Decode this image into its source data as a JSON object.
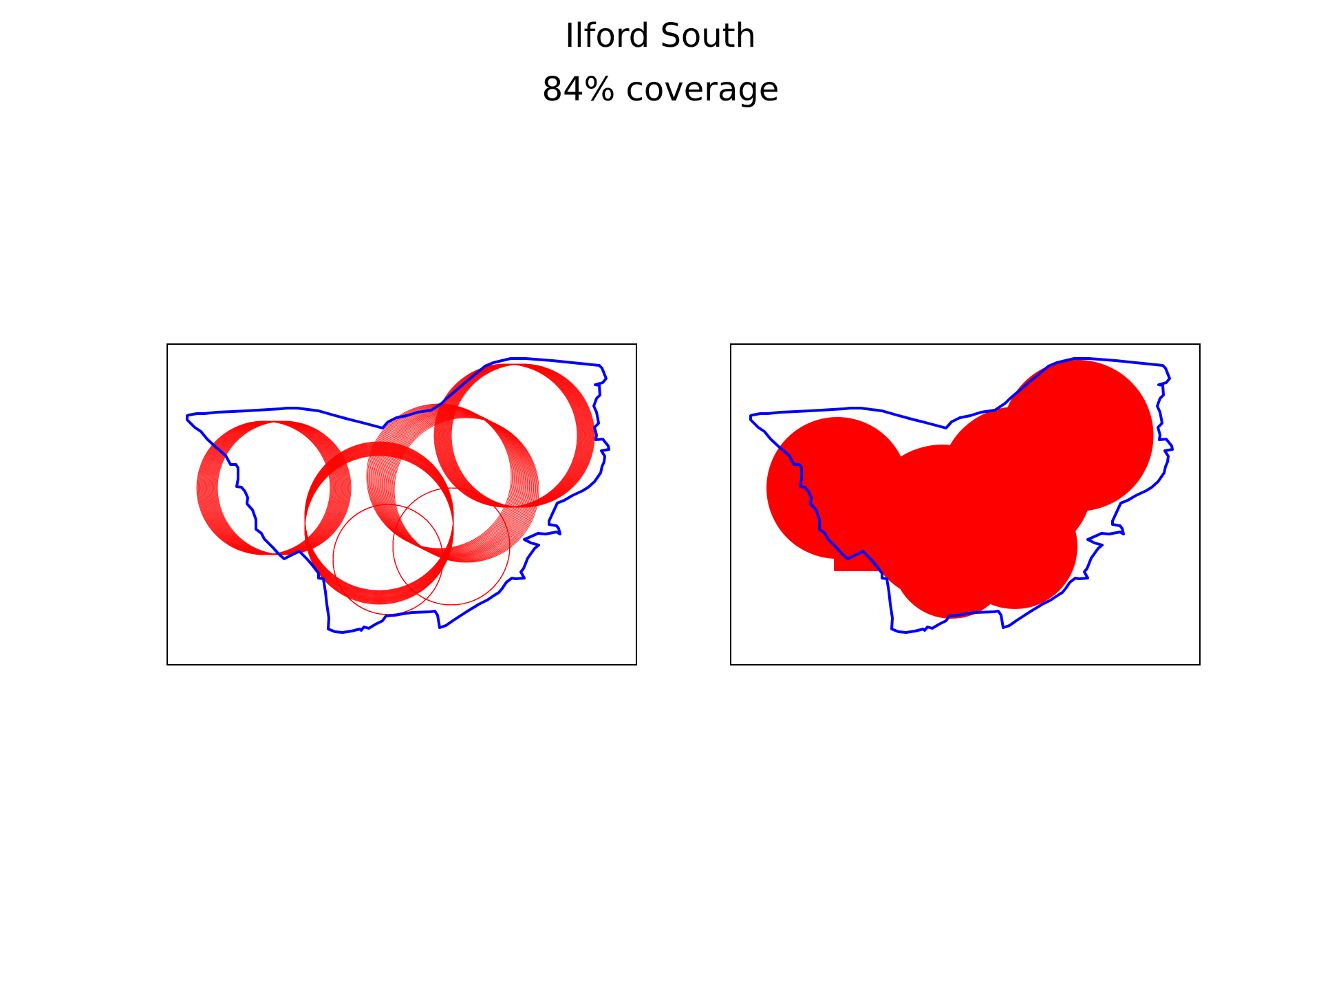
{
  "chart_data": {
    "type": "map",
    "title": "Ilford South",
    "subtitle": "84% coverage",
    "colors": {
      "boundary": "#0000ff",
      "coverage": "#ff0000",
      "frame": "#000000",
      "background": "#ffffff"
    },
    "axes_ticks": false,
    "panels": [
      {
        "name": "coverage-circles-outline",
        "style": "outline"
      },
      {
        "name": "coverage-union-filled",
        "style": "filled"
      }
    ]
  }
}
